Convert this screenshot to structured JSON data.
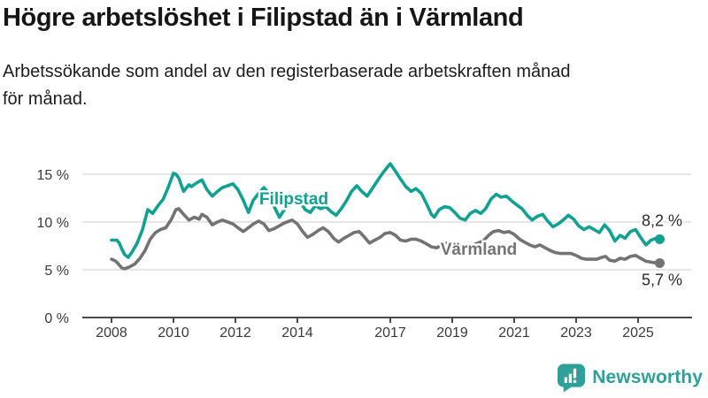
{
  "header": {
    "title": "Högre arbetslöshet i Filipstad än i Värmland",
    "subtitle_lines": [
      "Arbetssökande som andel av den registerbaserade arbetskraften månad",
      "för månad."
    ]
  },
  "branding": {
    "logo_text": "Newsworthy",
    "logo_icon": "bar-chart-speech-bubble-icon",
    "logo_color": "#2f9f99"
  },
  "chart_data": {
    "type": "line",
    "unit": "%",
    "grid": true,
    "legend_position": "inline-labels",
    "x_axis": {
      "range": [
        2008,
        2025.75
      ],
      "ticks": [
        {
          "value": 2008,
          "label": "2008"
        },
        {
          "value": 2010,
          "label": "2010"
        },
        {
          "value": 2012,
          "label": "2012"
        },
        {
          "value": 2014,
          "label": "2014"
        },
        {
          "value": 2017,
          "label": "2017"
        },
        {
          "value": 2019,
          "label": "2019"
        },
        {
          "value": 2021,
          "label": "2021"
        },
        {
          "value": 2023,
          "label": "2023"
        },
        {
          "value": 2025,
          "label": "2025"
        }
      ]
    },
    "y_axis": {
      "range": [
        0,
        16.5
      ],
      "ticks": [
        {
          "value": 0,
          "label": "0 %"
        },
        {
          "value": 5,
          "label": "5 %"
        },
        {
          "value": 10,
          "label": "10 %"
        },
        {
          "value": 15,
          "label": "15 %"
        }
      ]
    },
    "style": {
      "grid_color": "#d8d8d8",
      "axis_color": "#4a4a4a",
      "tick_label_color": "#3a3a3a",
      "end_label_color": "#2b2b2b"
    },
    "series": [
      {
        "name": "Filipstad",
        "slug": "filipstad",
        "color": "#10a191",
        "end_value": 8.2,
        "end_label": "8,2 %",
        "points": [
          [
            2008.0,
            8.1
          ],
          [
            2008.08,
            8.1
          ],
          [
            2008.17,
            8.1
          ],
          [
            2008.25,
            7.8
          ],
          [
            2008.33,
            7.2
          ],
          [
            2008.42,
            6.6
          ],
          [
            2008.54,
            6.3
          ],
          [
            2008.67,
            6.9
          ],
          [
            2008.83,
            7.8
          ],
          [
            2009.0,
            9.2
          ],
          [
            2009.17,
            11.3
          ],
          [
            2009.33,
            10.9
          ],
          [
            2009.5,
            11.7
          ],
          [
            2009.67,
            12.4
          ],
          [
            2009.83,
            13.6
          ],
          [
            2010.0,
            15.1
          ],
          [
            2010.08,
            15.0
          ],
          [
            2010.17,
            14.6
          ],
          [
            2010.33,
            13.2
          ],
          [
            2010.5,
            13.9
          ],
          [
            2010.58,
            13.7
          ],
          [
            2010.75,
            14.1
          ],
          [
            2010.92,
            14.4
          ],
          [
            2011.08,
            13.4
          ],
          [
            2011.25,
            12.7
          ],
          [
            2011.42,
            13.2
          ],
          [
            2011.58,
            13.6
          ],
          [
            2011.75,
            13.8
          ],
          [
            2011.92,
            14.0
          ],
          [
            2012.08,
            13.4
          ],
          [
            2012.25,
            12.3
          ],
          [
            2012.42,
            11.0
          ],
          [
            2012.58,
            12.3
          ],
          [
            2012.75,
            13.0
          ],
          [
            2012.92,
            13.6
          ],
          [
            2013.08,
            13.0
          ],
          [
            2013.25,
            11.6
          ],
          [
            2013.42,
            10.5
          ],
          [
            2013.58,
            11.3
          ],
          [
            2013.75,
            11.8
          ],
          [
            2013.92,
            12.1
          ],
          [
            2014.08,
            12.2
          ],
          [
            2014.25,
            11.3
          ],
          [
            2014.42,
            11.0
          ],
          [
            2014.58,
            11.7
          ],
          [
            2014.75,
            11.4
          ],
          [
            2014.92,
            11.6
          ],
          [
            2015.08,
            11.1
          ],
          [
            2015.25,
            10.7
          ],
          [
            2015.42,
            11.4
          ],
          [
            2015.58,
            12.2
          ],
          [
            2015.75,
            13.2
          ],
          [
            2015.92,
            13.8
          ],
          [
            2016.08,
            13.2
          ],
          [
            2016.25,
            12.7
          ],
          [
            2016.42,
            13.5
          ],
          [
            2016.58,
            14.3
          ],
          [
            2016.75,
            15.1
          ],
          [
            2016.92,
            15.8
          ],
          [
            2017.0,
            16.1
          ],
          [
            2017.17,
            15.3
          ],
          [
            2017.33,
            14.5
          ],
          [
            2017.5,
            13.7
          ],
          [
            2017.67,
            13.2
          ],
          [
            2017.83,
            13.5
          ],
          [
            2018.0,
            13.0
          ],
          [
            2018.17,
            11.9
          ],
          [
            2018.33,
            10.8
          ],
          [
            2018.42,
            10.5
          ],
          [
            2018.58,
            11.3
          ],
          [
            2018.75,
            11.6
          ],
          [
            2018.92,
            11.5
          ],
          [
            2019.08,
            11.0
          ],
          [
            2019.25,
            10.4
          ],
          [
            2019.42,
            10.2
          ],
          [
            2019.58,
            10.9
          ],
          [
            2019.75,
            11.2
          ],
          [
            2019.92,
            10.9
          ],
          [
            2020.08,
            11.4
          ],
          [
            2020.25,
            12.4
          ],
          [
            2020.42,
            12.9
          ],
          [
            2020.58,
            12.6
          ],
          [
            2020.75,
            12.7
          ],
          [
            2020.92,
            12.2
          ],
          [
            2021.08,
            11.8
          ],
          [
            2021.25,
            11.4
          ],
          [
            2021.42,
            10.7
          ],
          [
            2021.58,
            10.2
          ],
          [
            2021.75,
            10.6
          ],
          [
            2021.92,
            10.8
          ],
          [
            2022.08,
            10.1
          ],
          [
            2022.25,
            9.5
          ],
          [
            2022.42,
            9.8
          ],
          [
            2022.58,
            10.2
          ],
          [
            2022.75,
            10.7
          ],
          [
            2022.92,
            10.3
          ],
          [
            2023.08,
            9.6
          ],
          [
            2023.25,
            9.2
          ],
          [
            2023.42,
            9.5
          ],
          [
            2023.58,
            9.2
          ],
          [
            2023.75,
            8.9
          ],
          [
            2023.92,
            9.7
          ],
          [
            2024.08,
            9.1
          ],
          [
            2024.25,
            8.0
          ],
          [
            2024.42,
            8.6
          ],
          [
            2024.58,
            8.3
          ],
          [
            2024.75,
            9.0
          ],
          [
            2024.92,
            9.2
          ],
          [
            2025.08,
            8.4
          ],
          [
            2025.25,
            7.6
          ],
          [
            2025.42,
            8.1
          ],
          [
            2025.58,
            8.3
          ],
          [
            2025.67,
            8.2
          ]
        ]
      },
      {
        "name": "Värmland",
        "slug": "varmland",
        "color": "#737373",
        "end_value": 5.7,
        "end_label": "5,7 %",
        "points": [
          [
            2008.0,
            6.1
          ],
          [
            2008.08,
            6.0
          ],
          [
            2008.17,
            5.8
          ],
          [
            2008.33,
            5.2
          ],
          [
            2008.42,
            5.1
          ],
          [
            2008.58,
            5.3
          ],
          [
            2008.75,
            5.6
          ],
          [
            2008.92,
            6.2
          ],
          [
            2009.08,
            7.0
          ],
          [
            2009.25,
            8.2
          ],
          [
            2009.42,
            8.9
          ],
          [
            2009.58,
            9.2
          ],
          [
            2009.75,
            9.4
          ],
          [
            2009.92,
            10.2
          ],
          [
            2010.08,
            11.3
          ],
          [
            2010.17,
            11.4
          ],
          [
            2010.33,
            10.8
          ],
          [
            2010.5,
            10.2
          ],
          [
            2010.67,
            10.5
          ],
          [
            2010.83,
            10.3
          ],
          [
            2010.92,
            10.8
          ],
          [
            2011.08,
            10.5
          ],
          [
            2011.25,
            9.7
          ],
          [
            2011.42,
            10.0
          ],
          [
            2011.58,
            10.2
          ],
          [
            2011.75,
            10.0
          ],
          [
            2011.92,
            9.8
          ],
          [
            2012.08,
            9.4
          ],
          [
            2012.25,
            9.0
          ],
          [
            2012.42,
            9.4
          ],
          [
            2012.58,
            9.8
          ],
          [
            2012.75,
            10.1
          ],
          [
            2012.92,
            9.8
          ],
          [
            2013.08,
            9.1
          ],
          [
            2013.25,
            9.3
          ],
          [
            2013.42,
            9.6
          ],
          [
            2013.58,
            9.9
          ],
          [
            2013.83,
            10.2
          ],
          [
            2014.0,
            9.8
          ],
          [
            2014.17,
            9.0
          ],
          [
            2014.33,
            8.4
          ],
          [
            2014.5,
            8.7
          ],
          [
            2014.67,
            9.1
          ],
          [
            2014.83,
            9.4
          ],
          [
            2015.0,
            9.0
          ],
          [
            2015.17,
            8.3
          ],
          [
            2015.33,
            7.9
          ],
          [
            2015.5,
            8.3
          ],
          [
            2015.67,
            8.6
          ],
          [
            2015.83,
            8.9
          ],
          [
            2016.0,
            9.0
          ],
          [
            2016.17,
            8.4
          ],
          [
            2016.33,
            7.8
          ],
          [
            2016.5,
            8.1
          ],
          [
            2016.67,
            8.4
          ],
          [
            2016.83,
            8.8
          ],
          [
            2017.0,
            8.9
          ],
          [
            2017.17,
            8.6
          ],
          [
            2017.33,
            8.1
          ],
          [
            2017.5,
            8.0
          ],
          [
            2017.67,
            8.2
          ],
          [
            2017.83,
            8.2
          ],
          [
            2018.0,
            8.0
          ],
          [
            2018.17,
            7.7
          ],
          [
            2018.33,
            7.4
          ],
          [
            2018.5,
            7.3
          ],
          [
            2018.67,
            7.6
          ],
          [
            2018.83,
            7.8
          ],
          [
            2019.0,
            7.7
          ],
          [
            2019.17,
            7.4
          ],
          [
            2019.33,
            7.2
          ],
          [
            2019.5,
            7.4
          ],
          [
            2019.67,
            7.6
          ],
          [
            2019.83,
            7.8
          ],
          [
            2020.0,
            8.0
          ],
          [
            2020.17,
            8.6
          ],
          [
            2020.33,
            9.0
          ],
          [
            2020.5,
            9.1
          ],
          [
            2020.67,
            8.9
          ],
          [
            2020.83,
            9.0
          ],
          [
            2021.0,
            8.7
          ],
          [
            2021.17,
            8.2
          ],
          [
            2021.33,
            7.9
          ],
          [
            2021.5,
            7.6
          ],
          [
            2021.67,
            7.4
          ],
          [
            2021.83,
            7.6
          ],
          [
            2022.0,
            7.3
          ],
          [
            2022.17,
            7.0
          ],
          [
            2022.33,
            6.8
          ],
          [
            2022.5,
            6.7
          ],
          [
            2022.67,
            6.7
          ],
          [
            2022.83,
            6.7
          ],
          [
            2023.0,
            6.5
          ],
          [
            2023.17,
            6.2
          ],
          [
            2023.33,
            6.1
          ],
          [
            2023.5,
            6.1
          ],
          [
            2023.67,
            6.1
          ],
          [
            2023.83,
            6.3
          ],
          [
            2023.95,
            6.4
          ],
          [
            2024.08,
            6.0
          ],
          [
            2024.25,
            5.9
          ],
          [
            2024.42,
            6.2
          ],
          [
            2024.58,
            6.1
          ],
          [
            2024.75,
            6.4
          ],
          [
            2024.92,
            6.5
          ],
          [
            2025.08,
            6.2
          ],
          [
            2025.25,
            5.9
          ],
          [
            2025.42,
            5.8
          ],
          [
            2025.58,
            5.7
          ],
          [
            2025.67,
            5.7
          ]
        ]
      }
    ]
  }
}
